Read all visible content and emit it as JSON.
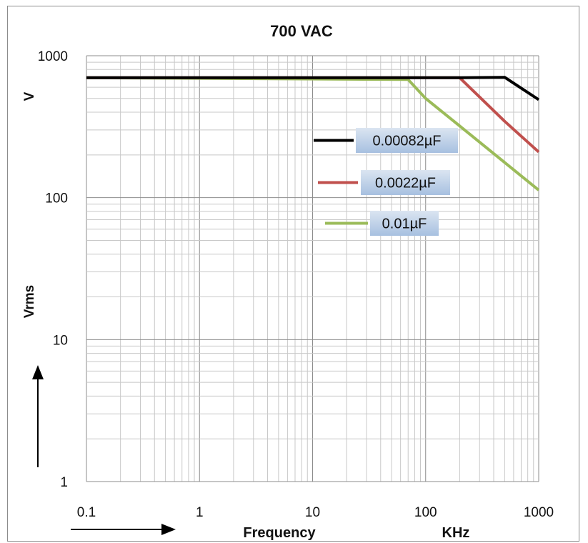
{
  "chart_data": {
    "type": "line",
    "title": "700 VAC",
    "x_scale": "log",
    "y_scale": "log",
    "xlim": [
      0.1,
      1000
    ],
    "ylim": [
      1,
      1000
    ],
    "x_ticks": [
      "0.1",
      "1",
      "10",
      "100",
      "1000"
    ],
    "y_ticks": [
      "1",
      "10",
      "100",
      "1000"
    ],
    "xlabel": "Frequency",
    "xunit": "KHz",
    "ylabel": "Vrms",
    "yunit": "V",
    "grid": true,
    "legend_placement": "right",
    "series": [
      {
        "name": "0.00082µF",
        "color": "#000000",
        "x": [
          0.1,
          200,
          500,
          1000
        ],
        "y": [
          700,
          700,
          705,
          490
        ]
      },
      {
        "name": "0.0022µF",
        "color": "#c0504d",
        "x": [
          0.1,
          200,
          500,
          1000
        ],
        "y": [
          700,
          700,
          345,
          210
        ]
      },
      {
        "name": "0.01µF",
        "color": "#9bbb59",
        "x": [
          0.1,
          70,
          100,
          200,
          1000
        ],
        "y": [
          700,
          680,
          500,
          320,
          113
        ]
      }
    ]
  }
}
